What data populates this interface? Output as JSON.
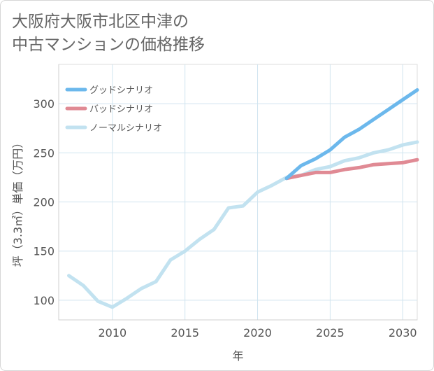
{
  "title_line1": "大阪府大阪市北区中津の",
  "title_line2": "中古マンションの価格推移",
  "chart_data": {
    "type": "line",
    "xlabel": "年",
    "ylabel": "坪（3.3㎡）単価（万円）",
    "xlim": [
      2006.3,
      2031
    ],
    "ylim": [
      80,
      340
    ],
    "xticks": [
      2010,
      2015,
      2020,
      2025,
      2030
    ],
    "yticks": [
      100,
      150,
      200,
      250,
      300
    ],
    "grid": true,
    "legend_position": "top-left",
    "series": [
      {
        "name": "グッドシナリオ",
        "color": "#6cb8ec",
        "x": [
          2022,
          2023,
          2024,
          2025,
          2026,
          2027,
          2028,
          2029,
          2030,
          2031
        ],
        "y": [
          224,
          237,
          244,
          253,
          266,
          274,
          284,
          294,
          304,
          314
        ]
      },
      {
        "name": "バッドシナリオ",
        "color": "#e08a94",
        "x": [
          2022,
          2023,
          2024,
          2025,
          2026,
          2027,
          2028,
          2029,
          2030,
          2031
        ],
        "y": [
          224,
          227,
          230,
          230,
          233,
          235,
          238,
          239,
          240,
          243
        ]
      },
      {
        "name": "ノーマルシナリオ",
        "color": "#c2e2f0",
        "x": [
          2007,
          2008,
          2009,
          2010,
          2011,
          2012,
          2013,
          2014,
          2015,
          2016,
          2017,
          2018,
          2019,
          2020,
          2021,
          2022,
          2023,
          2024,
          2025,
          2026,
          2027,
          2028,
          2029,
          2030,
          2031
        ],
        "y": [
          125,
          115,
          99,
          93,
          102,
          112,
          119,
          141,
          150,
          162,
          172,
          194,
          196,
          210,
          217,
          225,
          227,
          233,
          236,
          242,
          245,
          250,
          253,
          258,
          261
        ]
      }
    ]
  }
}
